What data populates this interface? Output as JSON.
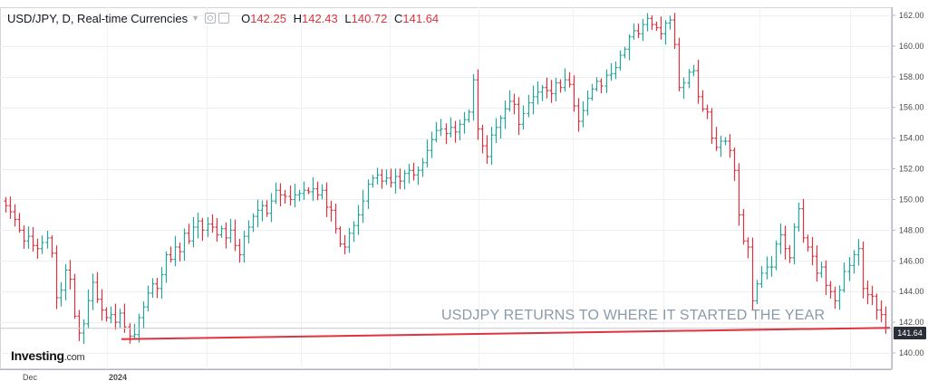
{
  "header": {
    "title": "USD/JPY, D, Real-time Currencies",
    "open_label": "O",
    "open": "142.25",
    "high_label": "H",
    "high": "142.43",
    "low_label": "L",
    "low": "140.72",
    "close_label": "C",
    "close": "141.64"
  },
  "annotation": "USDJPY RETURNS TO WHERE IT STARTED THE YEAR",
  "logo": {
    "name": "Investing",
    "suffix": ".com"
  },
  "last_price_tag": "141.64",
  "x_axis_labels": [
    "Dec",
    "2024"
  ],
  "colors": {
    "up": "#26a69a",
    "down": "#e0323f",
    "trendline": "#e0323f",
    "accent": "#2a2e39"
  },
  "chart_data": {
    "type": "ohlc",
    "title": "USD/JPY, D, Real-time Currencies",
    "ylim": [
      139.6,
      162.2
    ],
    "yticks": [
      140,
      142,
      144,
      146,
      148,
      150,
      152,
      154,
      156,
      158,
      160,
      162
    ],
    "last_price": 141.64,
    "grid": true,
    "trendline": {
      "from": 140.9,
      "to": 141.64
    },
    "closes": [
      149.6,
      149.2,
      148.7,
      148.0,
      147.3,
      147.6,
      147.0,
      146.8,
      147.2,
      147.5,
      146.5,
      143.6,
      144.1,
      145.4,
      144.8,
      142.4,
      141.3,
      141.9,
      143.4,
      144.6,
      143.5,
      142.8,
      142.3,
      142.5,
      142.0,
      142.6,
      141.7,
      141.1,
      141.2,
      142.3,
      143.0,
      143.9,
      144.5,
      144.2,
      145.1,
      146.4,
      146.1,
      146.9,
      146.6,
      147.8,
      147.3,
      148.2,
      148.6,
      148.0,
      148.4,
      148.2,
      147.7,
      148.1,
      147.5,
      148.0,
      147.0,
      146.4,
      147.6,
      148.2,
      148.9,
      149.3,
      149.6,
      149.1,
      149.9,
      150.6,
      150.3,
      150.2,
      150.0,
      150.3,
      150.4,
      150.6,
      150.5,
      150.7,
      150.3,
      150.6,
      149.5,
      149.3,
      148.1,
      147.1,
      146.9,
      147.8,
      148.3,
      149.0,
      149.9,
      151.0,
      151.4,
      151.6,
      151.2,
      151.4,
      151.1,
      151.5,
      151.2,
      151.7,
      151.9,
      151.6,
      151.9,
      152.4,
      153.2,
      153.9,
      154.5,
      154.6,
      154.3,
      154.7,
      154.4,
      154.9,
      155.2,
      155.7,
      157.8,
      154.6,
      153.5,
      152.8,
      154.2,
      154.7,
      155.3,
      155.9,
      156.4,
      156.2,
      154.9,
      155.6,
      156.3,
      156.7,
      157.0,
      157.3,
      157.1,
      156.9,
      157.6,
      157.3,
      157.8,
      157.5,
      156.1,
      155.1,
      155.8,
      156.6,
      157.2,
      157.7,
      157.4,
      158.1,
      158.2,
      158.6,
      159.4,
      159.8,
      160.6,
      161.0,
      160.8,
      161.4,
      161.8,
      161.4,
      161.2,
      160.8,
      161.5,
      161.7,
      160.1,
      157.3,
      157.6,
      158.3,
      158.4,
      156.7,
      155.9,
      155.7,
      154.0,
      153.4,
      153.8,
      153.8,
      153.2,
      151.9,
      149.0,
      147.3,
      146.9,
      143.4,
      144.5,
      145.2,
      145.6,
      145.6,
      147.1,
      147.7,
      146.8,
      146.2,
      148.2,
      149.4,
      147.5,
      146.9,
      146.3,
      145.2,
      145.6,
      144.4,
      144.0,
      143.4,
      144.1,
      145.3,
      145.7,
      146.4,
      146.8,
      144.2,
      143.8,
      143.7,
      142.8,
      142.5,
      141.64
    ]
  }
}
